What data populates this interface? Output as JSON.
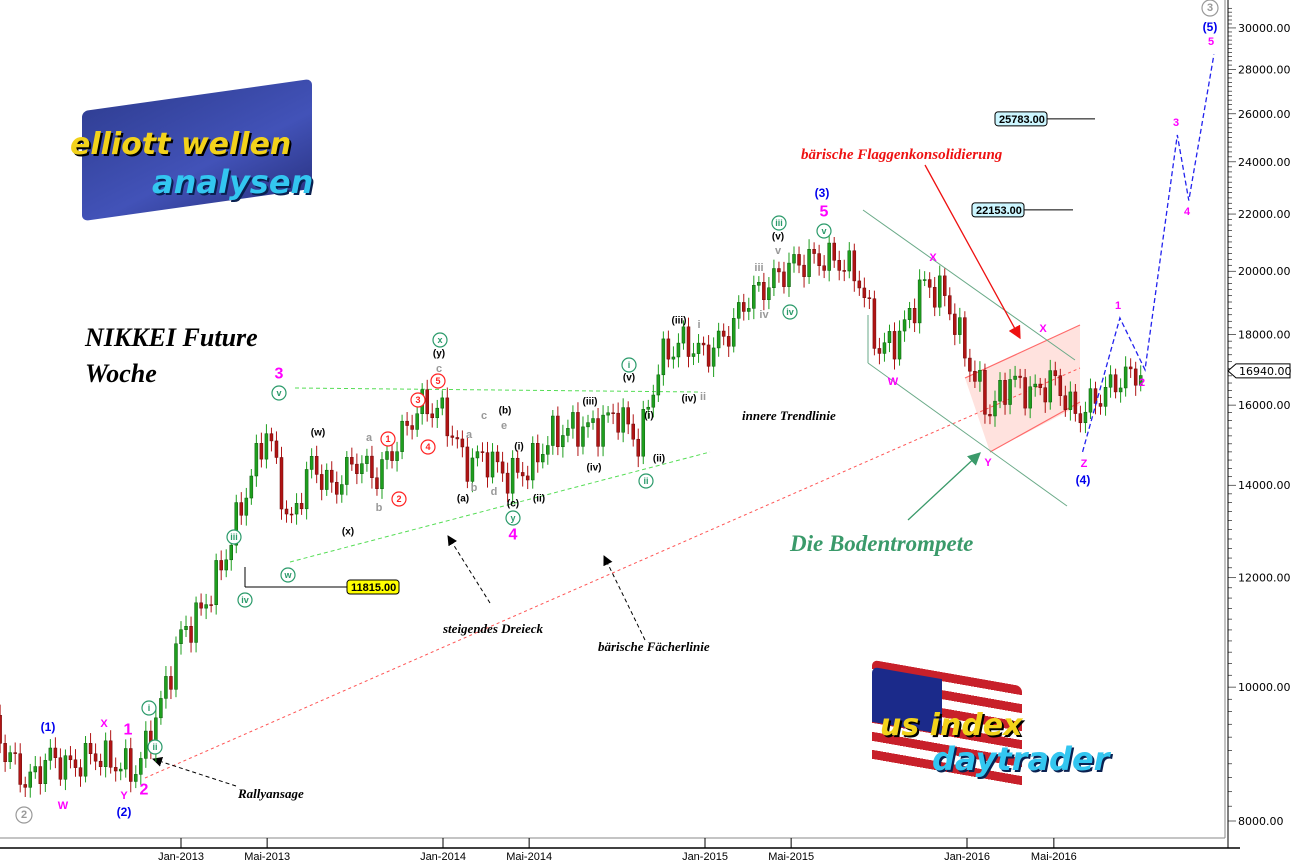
{
  "chart_data": {
    "type": "candlestick",
    "title": "NIKKEI Future",
    "subtitle": "Woche",
    "y_scale": "log",
    "ylim": [
      7800,
      31500
    ],
    "y_ticks": [
      "8000.00",
      "10000.00",
      "12000.00",
      "14000.00",
      "16000.00",
      "18000.00",
      "20000.00",
      "22000.00",
      "24000.00",
      "26000.00",
      "28000.00",
      "30000.00"
    ],
    "x_ticks": [
      {
        "label": "Jan-2013",
        "date": "2013-01-01"
      },
      {
        "label": "Mai-2013",
        "date": "2013-05-01"
      },
      {
        "label": "Jan-2014",
        "date": "2014-01-01"
      },
      {
        "label": "Mai-2014",
        "date": "2014-05-01"
      },
      {
        "label": "Jan-2015",
        "date": "2015-01-01"
      },
      {
        "label": "Mai-2015",
        "date": "2015-05-01"
      },
      {
        "label": "Jan-2016",
        "date": "2016-01-01"
      },
      {
        "label": "Mai-2016",
        "date": "2016-05-01"
      }
    ],
    "grid": false,
    "colors": {
      "up": "#1e9e1e",
      "down": "#b01414",
      "projection": "#2222ee",
      "fan_line": "#ff5555",
      "triangle": "#55dd55",
      "channel": "#6aaa88",
      "flag_fill": "#ffd6d0"
    },
    "approx_monthly_closes": [
      [
        "2012-04-10",
        9500
      ],
      [
        "2012-05-01",
        9000
      ],
      [
        "2012-06-01",
        8500
      ],
      [
        "2012-07-01",
        8900
      ],
      [
        "2012-08-01",
        8750
      ],
      [
        "2012-09-01",
        8950
      ],
      [
        "2012-10-01",
        8800
      ],
      [
        "2012-11-01",
        8700
      ],
      [
        "2012-12-01",
        9600
      ],
      [
        "2013-01-01",
        10900
      ],
      [
        "2013-02-01",
        11400
      ],
      [
        "2013-03-01",
        12300
      ],
      [
        "2013-04-01",
        13800
      ],
      [
        "2013-05-01",
        15400
      ],
      [
        "2013-06-01",
        13000
      ],
      [
        "2013-07-01",
        14500
      ],
      [
        "2013-08-01",
        13900
      ],
      [
        "2013-09-01",
        14600
      ],
      [
        "2013-10-01",
        14200
      ],
      [
        "2013-11-01",
        15100
      ],
      [
        "2013-12-01",
        16000
      ],
      [
        "2014-01-01",
        15800
      ],
      [
        "2014-02-01",
        14500
      ],
      [
        "2014-03-01",
        14700
      ],
      [
        "2014-04-01",
        14200
      ],
      [
        "2014-05-01",
        14400
      ],
      [
        "2014-06-01",
        15200
      ],
      [
        "2014-07-01",
        15400
      ],
      [
        "2014-08-01",
        15400
      ],
      [
        "2014-09-01",
        15800
      ],
      [
        "2014-10-01",
        15000
      ],
      [
        "2014-11-01",
        17300
      ],
      [
        "2014-12-01",
        17800
      ],
      [
        "2015-01-01",
        17400
      ],
      [
        "2015-02-01",
        18000
      ],
      [
        "2015-03-01",
        19100
      ],
      [
        "2015-04-01",
        19600
      ],
      [
        "2015-05-01",
        20200
      ],
      [
        "2015-06-01",
        20400
      ],
      [
        "2015-07-01",
        20400
      ],
      [
        "2015-08-01",
        19900
      ],
      [
        "2015-09-01",
        17500
      ],
      [
        "2015-10-01",
        18000
      ],
      [
        "2015-11-01",
        19600
      ],
      [
        "2015-12-01",
        19200
      ],
      [
        "2016-01-01",
        17300
      ],
      [
        "2016-02-01",
        15800
      ],
      [
        "2016-03-01",
        16700
      ],
      [
        "2016-04-01",
        16300
      ],
      [
        "2016-05-01",
        16700
      ],
      [
        "2016-06-01",
        15700
      ],
      [
        "2016-07-01",
        16200
      ],
      [
        "2016-08-01",
        16700
      ],
      [
        "2016-09-01",
        16940
      ]
    ],
    "last_price": "16940.00",
    "levels": [
      {
        "label": "25783.00",
        "value": 25783,
        "color": "#ccf6ff"
      },
      {
        "label": "22153.00",
        "value": 22153,
        "color": "#ccf6ff"
      },
      {
        "label": "11815.00",
        "value": 11815,
        "color": "#ffff00"
      }
    ],
    "projection": [
      [
        "2016-06-10",
        14800
      ],
      [
        "2016-08-01",
        18500
      ],
      [
        "2016-09-05",
        16970
      ],
      [
        "2016-10-20",
        25100
      ],
      [
        "2016-11-05",
        22500
      ],
      [
        "2016-12-10",
        28700
      ]
    ],
    "wave_labels": [
      {
        "text": "2",
        "style": "circle-grey"
      },
      {
        "text": "3",
        "style": "circle-grey"
      },
      {
        "text": "(1)",
        "style": "blue"
      },
      {
        "text": "(2)",
        "style": "blue"
      },
      {
        "text": "(3)",
        "style": "blue"
      },
      {
        "text": "(4)",
        "style": "blue"
      },
      {
        "text": "(5)",
        "style": "blue"
      },
      {
        "text": "1",
        "style": "magenta-big"
      },
      {
        "text": "2",
        "style": "magenta-big"
      },
      {
        "text": "3",
        "style": "magenta-big"
      },
      {
        "text": "4",
        "style": "magenta-big"
      },
      {
        "text": "5",
        "style": "magenta-big"
      },
      {
        "text": "W",
        "style": "magenta"
      },
      {
        "text": "X",
        "style": "magenta"
      },
      {
        "text": "Y",
        "style": "magenta"
      },
      {
        "text": "W",
        "style": "magenta"
      },
      {
        "text": "X",
        "style": "magenta"
      },
      {
        "text": "X",
        "style": "magenta"
      },
      {
        "text": "Y",
        "style": "magenta"
      },
      {
        "text": "Z",
        "style": "magenta"
      },
      {
        "text": "1",
        "style": "magenta"
      },
      {
        "text": "2",
        "style": "magenta"
      },
      {
        "text": "3",
        "style": "magenta"
      },
      {
        "text": "4",
        "style": "magenta"
      },
      {
        "text": "5",
        "style": "magenta"
      },
      {
        "text": "i",
        "style": "circle-green"
      },
      {
        "text": "ii",
        "style": "circle-green"
      },
      {
        "text": "iii",
        "style": "circle-green"
      },
      {
        "text": "iv",
        "style": "circle-green"
      },
      {
        "text": "v",
        "style": "circle-green"
      },
      {
        "text": "w",
        "style": "circle-green"
      },
      {
        "text": "x",
        "style": "circle-green"
      },
      {
        "text": "y",
        "style": "circle-green"
      },
      {
        "text": "i",
        "style": "circle-green"
      },
      {
        "text": "ii",
        "style": "circle-green"
      },
      {
        "text": "iii",
        "style": "circle-green"
      },
      {
        "text": "iv",
        "style": "circle-green"
      },
      {
        "text": "v",
        "style": "circle-green"
      },
      {
        "text": "(w)",
        "style": "black"
      },
      {
        "text": "(x)",
        "style": "black"
      },
      {
        "text": "(y)",
        "style": "black"
      },
      {
        "text": "(a)",
        "style": "black"
      },
      {
        "text": "(b)",
        "style": "black"
      },
      {
        "text": "(c)",
        "style": "black"
      },
      {
        "text": "(i)",
        "style": "black"
      },
      {
        "text": "(ii)",
        "style": "black"
      },
      {
        "text": "(iii)",
        "style": "black"
      },
      {
        "text": "(iv)",
        "style": "black"
      },
      {
        "text": "(v)",
        "style": "black"
      },
      {
        "text": "(i)",
        "style": "black"
      },
      {
        "text": "(ii)",
        "style": "black"
      },
      {
        "text": "(iii)",
        "style": "black"
      },
      {
        "text": "(iv)",
        "style": "black"
      },
      {
        "text": "(v)",
        "style": "black"
      },
      {
        "text": "a",
        "style": "grey"
      },
      {
        "text": "b",
        "style": "grey"
      },
      {
        "text": "c",
        "style": "grey"
      },
      {
        "text": "a",
        "style": "grey"
      },
      {
        "text": "b",
        "style": "grey"
      },
      {
        "text": "c",
        "style": "grey"
      },
      {
        "text": "d",
        "style": "grey"
      },
      {
        "text": "e",
        "style": "grey"
      },
      {
        "text": "i",
        "style": "grey"
      },
      {
        "text": "ii",
        "style": "grey"
      },
      {
        "text": "iii",
        "style": "grey"
      },
      {
        "text": "iv",
        "style": "grey"
      },
      {
        "text": "v",
        "style": "grey"
      },
      {
        "text": "1",
        "style": "circle-red"
      },
      {
        "text": "2",
        "style": "circle-red"
      },
      {
        "text": "3",
        "style": "circle-red"
      },
      {
        "text": "4",
        "style": "circle-red"
      },
      {
        "text": "5",
        "style": "circle-red"
      }
    ],
    "annotations": {
      "steigendes_dreieck": "steigendes Dreieck",
      "faecherlinie": "bärische Fächerlinie",
      "rallyansage": "Rallyansage",
      "innere_trendlinie": "innere Trendlinie",
      "flaggen": "bärische Flaggenkonsolidierung",
      "bodentrompete": "Die Bodentrompete"
    }
  },
  "logos": {
    "top_left": [
      "elliott",
      "wellen",
      "analysen"
    ],
    "bottom_right": [
      "us index",
      "daytrader"
    ]
  }
}
